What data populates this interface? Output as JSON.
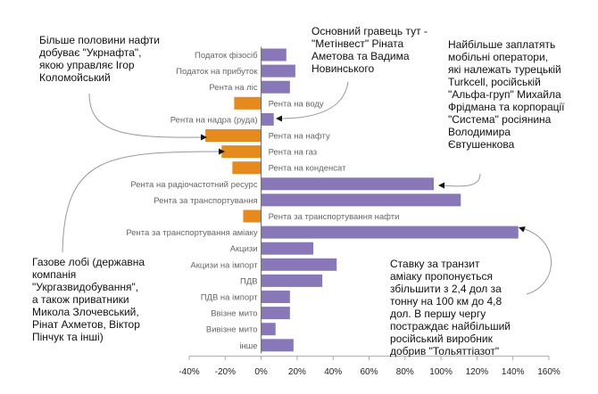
{
  "colors": {
    "positive": "#8878b8",
    "negative": "#e58a1f",
    "axis": "#666666",
    "callout": "#999999"
  },
  "chart_data": {
    "type": "bar",
    "orientation": "horizontal",
    "categories": [
      "Податок фізосіб",
      "Податок на прибуток",
      "Рента на ліс",
      "Рента на воду",
      "Рента на надра (руда)",
      "Рента на нафту",
      "Рента на газ",
      "Рента на конденсат",
      "Рента на радіочастотний ресурс",
      "Рента за транспортування",
      "Рента за транспортування нафти",
      "Рента за транспортування аміаку",
      "Акцизи",
      "Акцизи на імпорт",
      "ПДВ",
      "ПДВ на імпорт",
      "Ввізне мито",
      "Вивізне мито",
      "інше"
    ],
    "values": [
      14,
      19,
      16,
      -15,
      7,
      -31,
      -22,
      -16,
      96,
      111,
      -10,
      143,
      29,
      42,
      34,
      16,
      16,
      8,
      18
    ],
    "label_side": [
      "left",
      "left",
      "left",
      "right",
      "left",
      "right",
      "right",
      "right",
      "left",
      "left",
      "right",
      "left",
      "left",
      "left",
      "left",
      "left",
      "left",
      "left",
      "left"
    ],
    "x_ticks": [
      "-40%",
      "-20%",
      "0%",
      "20%",
      "40%",
      "60%",
      "80%",
      "100%",
      "120%",
      "140%",
      "160%"
    ],
    "xlim": [
      -40,
      160
    ],
    "grid": false,
    "legend": "none"
  },
  "annotations": {
    "ukrnafta": "Більше половини нафти\nдобуває \"Укрнафта\",\nякою управляє Ігор\nКоломойський",
    "metinvest": "Основний гравець тут -\n\"Метінвест\" Ріната\nАметова та Вадима\nНовинського",
    "mobile": "Найбільше заплатять\nмобільні оператори,\nякі належать турецькій\nTurkcell, російській\n\"Альфа-груп\" Михайла\nФрідмана та корпорації\n\"Система\" росіянина\nВолодимира\nЄвтушенкова",
    "gas": "Газове лобі (державна\nкомпанія\n\"Укргазвидобування\",\nа також приватники\nМикола Злочевський,\nРінат Ахметов, Віктор\nПінчук та інші)",
    "ammonia": "Ставку за транзит\nаміаку пропонується\nзбільшити з 2,4 дол за\nтонну на 100 км до 4,8\nдол. В першу чергу\nпостраждає найбільший\nросійський виробник\nдобрив \"Тольяттіазот\""
  }
}
